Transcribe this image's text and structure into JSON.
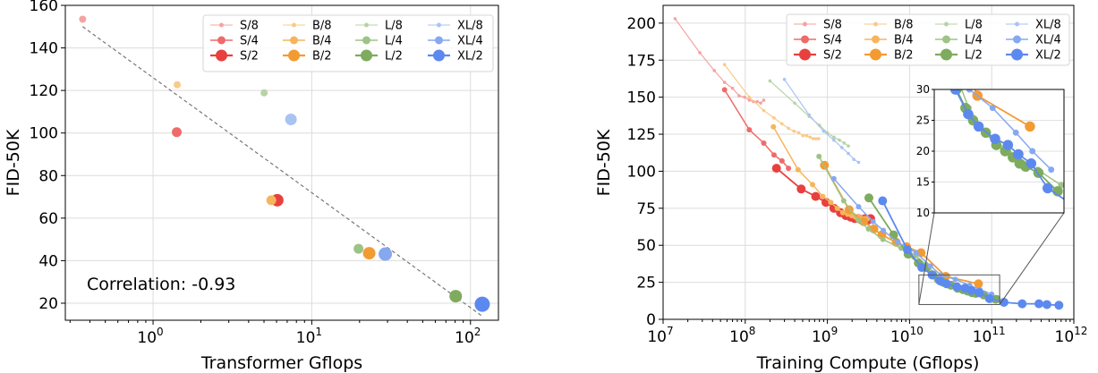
{
  "colors": {
    "S": [
      "#f4a3a1",
      "#ee6b6a",
      "#e8403e"
    ],
    "B": [
      "#f8cb8a",
      "#f6b55c",
      "#f39b33"
    ],
    "L": [
      "#b7d3a5",
      "#9dc386",
      "#7eab5e"
    ],
    "XL": [
      "#a9c3f3",
      "#86a8f1",
      "#5c89ef"
    ]
  },
  "chart_data": [
    {
      "type": "scatter",
      "xlabel": "Transformer Gflops",
      "ylabel": "FID-50K",
      "xscale": "log",
      "xlim": [
        0.28,
        150
      ],
      "ylim": [
        12,
        160
      ],
      "yticks": [
        "20",
        "40",
        "60",
        "80",
        "100",
        "120",
        "140",
        "160"
      ],
      "xticks": [
        {
          "base": "10",
          "exp": "0"
        },
        {
          "base": "10",
          "exp": "1"
        },
        {
          "base": "10",
          "exp": "2"
        }
      ],
      "annotation": "Correlation: -0.93",
      "trendline": [
        [
          0.36,
          150
        ],
        [
          118,
          14
        ]
      ],
      "legend": [
        "S/8",
        "S/4",
        "S/2",
        "B/8",
        "B/4",
        "B/2",
        "L/8",
        "L/4",
        "L/2",
        "XL/8",
        "XL/4",
        "XL/2"
      ],
      "legend_position": "top-right",
      "grid": true,
      "points": [
        {
          "name": "S/8",
          "x": 0.36,
          "y": 153.5
        },
        {
          "name": "S/4",
          "x": 1.41,
          "y": 100.4
        },
        {
          "name": "S/2",
          "x": 6.06,
          "y": 68.4
        },
        {
          "name": "B/8",
          "x": 1.42,
          "y": 122.7
        },
        {
          "name": "B/4",
          "x": 5.56,
          "y": 68.4
        },
        {
          "name": "B/2",
          "x": 23.01,
          "y": 43.5
        },
        {
          "name": "L/8",
          "x": 5.01,
          "y": 118.9
        },
        {
          "name": "L/4",
          "x": 19.7,
          "y": 45.6
        },
        {
          "name": "L/2",
          "x": 80.7,
          "y": 23.3
        },
        {
          "name": "XL/8",
          "x": 7.39,
          "y": 106.4
        },
        {
          "name": "XL/4",
          "x": 29.05,
          "y": 43.1
        },
        {
          "name": "XL/2",
          "x": 118.6,
          "y": 19.5
        }
      ]
    },
    {
      "type": "line",
      "xlabel": "Training Compute (Gflops)",
      "ylabel": "FID-50K",
      "xscale": "log",
      "xlim": [
        10000000.0,
        1000000000000.0
      ],
      "ylim": [
        0,
        212
      ],
      "yticks": [
        "0",
        "25",
        "50",
        "75",
        "100",
        "125",
        "150",
        "175",
        "200"
      ],
      "xticks": [
        {
          "base": "10",
          "exp": "7"
        },
        {
          "base": "10",
          "exp": "8"
        },
        {
          "base": "10",
          "exp": "9"
        },
        {
          "base": "10",
          "exp": "10"
        },
        {
          "base": "10",
          "exp": "11"
        },
        {
          "base": "10",
          "exp": "12"
        }
      ],
      "legend": [
        "S/8",
        "S/4",
        "S/2",
        "B/8",
        "B/4",
        "B/2",
        "L/8",
        "L/4",
        "L/2",
        "XL/8",
        "XL/4",
        "XL/2"
      ],
      "legend_position": "top-right",
      "grid": true,
      "inset": {
        "xlim": [
          13000000000.0,
          125000000000.0
        ],
        "ylim": [
          10,
          30
        ],
        "yticks": [
          "10",
          "15",
          "20",
          "25",
          "30"
        ]
      },
      "series": [
        {
          "name": "S/8",
          "x": [
            14000000.0,
            28000000.0,
            42000000.0,
            56000000.0,
            70000000.0,
            84000000.0,
            98000000.0,
            112000000.0,
            126000000.0,
            140000000.0,
            154000000.0,
            168000000.0
          ],
          "y": [
            203,
            180,
            168,
            160,
            156,
            151,
            150,
            148,
            147,
            147,
            146,
            148
          ]
        },
        {
          "name": "S/4",
          "x": [
            56000000.0,
            112000000.0,
            168000000.0,
            224000000.0,
            280000000.0,
            336000000.0
          ],
          "y": [
            155,
            128,
            119,
            111,
            107,
            102
          ]
        },
        {
          "name": "S/2",
          "x": [
            240000000.0,
            480000000.0,
            720000000.0,
            960000000.0,
            1200000000.0,
            1440000000.0,
            1680000000.0,
            1920000000.0,
            2160000000.0,
            2400000000.0,
            2640000000.0,
            2880000000.0,
            3120000000.0,
            3360000000.0
          ],
          "y": [
            102,
            88,
            83,
            79,
            75,
            72,
            70,
            69,
            68,
            68,
            67,
            68,
            67,
            68
          ]
        },
        {
          "name": "B/8",
          "x": [
            56000000.0,
            112000000.0,
            168000000.0,
            224000000.0,
            280000000.0,
            336000000.0,
            392000000.0,
            448000000.0,
            504000000.0,
            560000000.0,
            616000000.0,
            672000000.0,
            728000000.0,
            784000000.0
          ],
          "y": [
            172,
            150,
            141,
            136,
            132,
            129,
            127,
            126,
            124,
            124,
            123,
            122,
            122,
            122
          ]
        },
        {
          "name": "B/4",
          "x": [
            220000000.0,
            440000000.0,
            660000000.0,
            880000000.0,
            1100000000.0,
            1320000000.0,
            1540000000.0,
            1760000000.0,
            1980000000.0,
            2200000000.0,
            2420000000.0,
            2640000000.0,
            2860000000.0,
            3080000000.0
          ],
          "y": [
            130,
            101,
            91,
            83,
            79,
            75,
            72,
            71,
            70,
            69,
            69,
            68,
            68,
            68
          ]
        },
        {
          "name": "B/2",
          "x": [
            920000000.0,
            1840000000.0,
            2760000000.0,
            3680000000.0,
            4600000000.0,
            6900000000.0,
            9200000000.0,
            13800000000.0,
            27600000000.0,
            69000000000.0
          ],
          "y": [
            104,
            74,
            66,
            61,
            57,
            52,
            49,
            45,
            29,
            24
          ]
        },
        {
          "name": "L/8",
          "x": [
            200000000.0,
            400000000.0,
            600000000.0,
            800000000.0,
            1000000000.0,
            1200000000.0,
            1400000000.0,
            1600000000.0,
            1800000000.0
          ],
          "y": [
            161,
            146,
            137,
            131,
            126,
            123,
            121,
            119,
            117
          ]
        },
        {
          "name": "L/4",
          "x": [
            790000000.0,
            1580000000.0,
            2370000000.0,
            3160000000.0,
            4740000000.0,
            7900000000.0,
            11900000000.0,
            15800000000.0,
            23700000000.0,
            31600000000.0,
            47400000000.0,
            79000000000.0,
            119000000000.0
          ],
          "y": [
            110,
            80,
            67,
            61,
            54,
            48,
            43,
            37,
            27,
            23,
            20,
            17,
            14.5
          ]
        },
        {
          "name": "L/2",
          "x": [
            3200000000.0,
            6400000000.0,
            9600000000.0,
            12800000000.0,
            16000000000.0,
            19200000000.0,
            22400000000.0,
            25600000000.0,
            32000000000.0,
            38400000000.0,
            44800000000.0,
            51200000000.0,
            57600000000.0,
            64000000000.0,
            80000000000.0,
            112000000000.0
          ],
          "y": [
            82,
            57,
            44,
            38,
            35,
            30,
            27,
            25,
            23,
            21,
            20,
            19,
            18,
            17.5,
            16.5,
            13.5
          ]
        },
        {
          "name": "XL/8",
          "x": [
            300000000.0,
            600000000.0,
            900000000.0,
            1200000000.0,
            1500000000.0,
            1800000000.0,
            2100000000.0,
            2400000000.0
          ],
          "y": [
            162,
            138,
            127,
            121,
            116,
            112,
            108,
            106
          ]
        },
        {
          "name": "XL/4",
          "x": [
            1200000000.0,
            2400000000.0,
            3600000000.0,
            4800000000.0,
            7200000000.0,
            12000000000.0,
            18000000000.0,
            24000000000.0,
            36000000000.0,
            54000000000.0,
            72000000000.0,
            100000000000.0
          ],
          "y": [
            95,
            76,
            66,
            60,
            52,
            45,
            36,
            30,
            27,
            23,
            20,
            17
          ]
        },
        {
          "name": "XL/2",
          "x": [
            4700000000.0,
            9400000000.0,
            14100000000.0,
            18800000000.0,
            23500000000.0,
            28200000000.0,
            37600000000.0,
            47000000000.0,
            56400000000.0,
            70500000000.0,
            94000000000.0,
            141000000000.0,
            235000000000.0,
            376000000000.0,
            470000000000.0,
            658000000000.0
          ],
          "y": [
            80,
            47,
            35,
            30,
            26,
            24,
            22,
            21,
            19.5,
            18,
            14,
            11.5,
            10.5,
            10.5,
            10,
            9.5
          ]
        }
      ]
    }
  ]
}
